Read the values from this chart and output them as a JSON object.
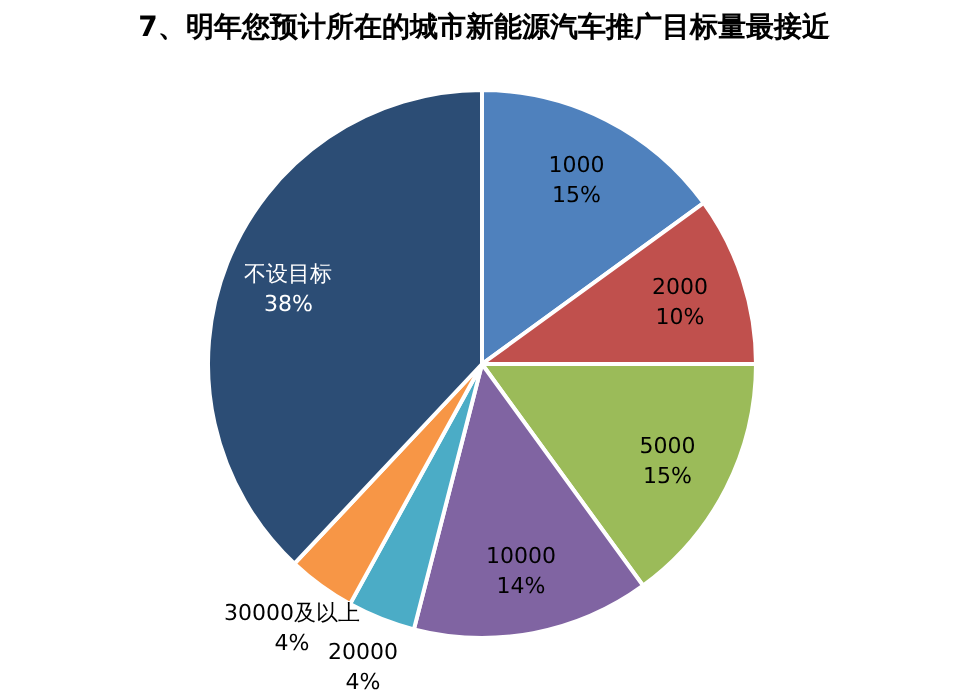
{
  "chart_data": {
    "type": "pie",
    "title": "7、明年您预计所在的城市新能源汽车推广目标量最接近",
    "categories": [
      "1000",
      "2000",
      "5000",
      "10000",
      "20000",
      "30000及以上",
      "不设目标"
    ],
    "values": [
      15,
      10,
      15,
      14,
      4,
      4,
      38
    ],
    "value_labels": [
      "15%",
      "10%",
      "15%",
      "14%",
      "4%",
      "4%",
      "38%"
    ],
    "colors": [
      "#4f81bd",
      "#c0504d",
      "#9bbb59",
      "#8064a2",
      "#4bacc6",
      "#f79646",
      "#2c4d75"
    ],
    "legend": false
  }
}
